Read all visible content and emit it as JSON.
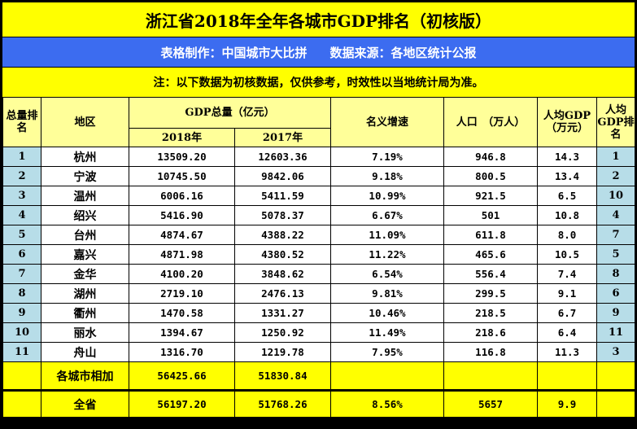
{
  "title": "浙江省2018年全年各城市GDP排名（初核版）",
  "credit": {
    "maker": "表格制作：中国城市大比拼",
    "source": "数据来源：各地区统计公报"
  },
  "note": "注：以下数据为初核数据，仅供参考，时效性以当地统计局为准。",
  "headers": {
    "rank": "总量排名",
    "region": "地区",
    "gdp_total": "GDP总量（亿元）",
    "gdp_2018": "2018年",
    "gdp_2017": "2017年",
    "growth": "名义增速",
    "population": "人口　（万人）",
    "gdp_per_capita": "人均GDP（万元）",
    "per_capita_rank": "人均GDP排名"
  },
  "rows": [
    {
      "rank": "1",
      "region": "杭州",
      "gdp2018": "13509.20",
      "gdp2017": "12603.36",
      "growth": "7.19%",
      "pop": "946.8",
      "pc": "14.3",
      "pc_rank": "1"
    },
    {
      "rank": "2",
      "region": "宁波",
      "gdp2018": "10745.50",
      "gdp2017": "9842.06",
      "growth": "9.18%",
      "pop": "800.5",
      "pc": "13.4",
      "pc_rank": "2"
    },
    {
      "rank": "3",
      "region": "温州",
      "gdp2018": "6006.16",
      "gdp2017": "5411.59",
      "growth": "10.99%",
      "pop": "921.5",
      "pc": "6.5",
      "pc_rank": "10"
    },
    {
      "rank": "4",
      "region": "绍兴",
      "gdp2018": "5416.90",
      "gdp2017": "5078.37",
      "growth": "6.67%",
      "pop": "501",
      "pc": "10.8",
      "pc_rank": "4"
    },
    {
      "rank": "5",
      "region": "台州",
      "gdp2018": "4874.67",
      "gdp2017": "4388.22",
      "growth": "11.09%",
      "pop": "611.8",
      "pc": "8.0",
      "pc_rank": "7"
    },
    {
      "rank": "6",
      "region": "嘉兴",
      "gdp2018": "4871.98",
      "gdp2017": "4380.52",
      "growth": "11.22%",
      "pop": "465.6",
      "pc": "10.5",
      "pc_rank": "5"
    },
    {
      "rank": "7",
      "region": "金华",
      "gdp2018": "4100.20",
      "gdp2017": "3848.62",
      "growth": "6.54%",
      "pop": "556.4",
      "pc": "7.4",
      "pc_rank": "8"
    },
    {
      "rank": "8",
      "region": "湖州",
      "gdp2018": "2719.10",
      "gdp2017": "2476.13",
      "growth": "9.81%",
      "pop": "299.5",
      "pc": "9.1",
      "pc_rank": "6"
    },
    {
      "rank": "9",
      "region": "衢州",
      "gdp2018": "1470.58",
      "gdp2017": "1331.27",
      "growth": "10.46%",
      "pop": "218.5",
      "pc": "6.7",
      "pc_rank": "9"
    },
    {
      "rank": "10",
      "region": "丽水",
      "gdp2018": "1394.67",
      "gdp2017": "1250.92",
      "growth": "11.49%",
      "pop": "218.6",
      "pc": "6.4",
      "pc_rank": "11"
    },
    {
      "rank": "11",
      "region": "舟山",
      "gdp2018": "1316.70",
      "gdp2017": "1219.78",
      "growth": "7.95%",
      "pop": "116.8",
      "pc": "11.3",
      "pc_rank": "3"
    }
  ],
  "sum_row": {
    "label": "各城市相加",
    "gdp2018": "56425.66",
    "gdp2017": "51830.84"
  },
  "total_row": {
    "label": "全省",
    "gdp2018": "56197.20",
    "gdp2017": "51768.26",
    "growth": "8.56%",
    "pop": "5657",
    "pc": "9.9"
  }
}
